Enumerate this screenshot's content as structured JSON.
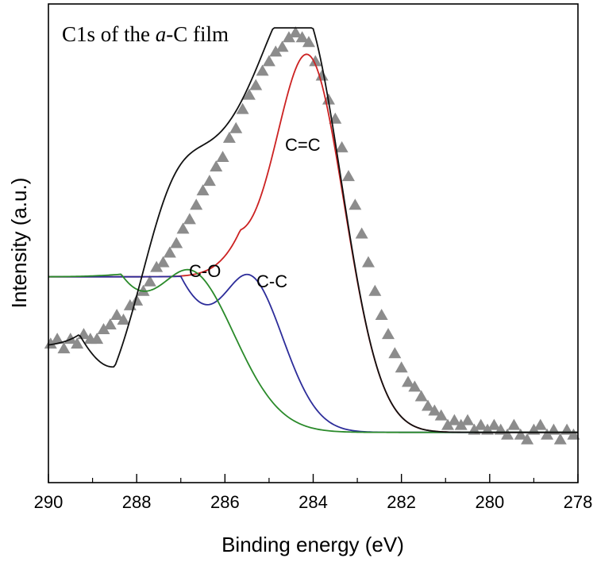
{
  "chart_data": {
    "type": "line",
    "title_parts": {
      "prefix": "C1s of the ",
      "italic": "a",
      "suffix": "-C film"
    },
    "xlabel": "Binding energy (eV)",
    "ylabel": "Intensity (a.u.)",
    "xlim": [
      290,
      278
    ],
    "x_reversed": true,
    "ylim": [
      0,
      1.0
    ],
    "y_ticks_shown": false,
    "grid": false,
    "x_ticks": [
      "290",
      "288",
      "286",
      "284",
      "282",
      "280",
      "278"
    ],
    "x_tick_values": [
      290,
      288,
      286,
      284,
      282,
      280,
      278
    ],
    "baseline": 0.105,
    "components": [
      {
        "name": "C=C",
        "color": "#cc2222",
        "center": 284.15,
        "height": 0.79,
        "sigma": 0.85
      },
      {
        "name": "C-C",
        "color": "#2d2d9a",
        "center": 285.5,
        "height": 0.33,
        "sigma": 0.8
      },
      {
        "name": "C-O",
        "color": "#2a8a2a",
        "center": 286.85,
        "height": 0.34,
        "sigma": 1.05
      }
    ],
    "envelope": {
      "color": "#111111",
      "shoulder": {
        "center": 287.2,
        "height": 0.17,
        "sigma": 0.75
      },
      "shelf": {
        "center": 290.2,
        "height": 0.325,
        "sigma": 1.2
      }
    },
    "data_points": {
      "marker": "triangle",
      "color": "#8c8c8c",
      "x": [
        289.95,
        289.8,
        289.65,
        289.5,
        289.35,
        289.2,
        289.05,
        288.9,
        288.75,
        288.6,
        288.45,
        288.3,
        288.15,
        288.0,
        287.85,
        287.7,
        287.55,
        287.4,
        287.25,
        287.1,
        286.95,
        286.8,
        286.65,
        286.5,
        286.35,
        286.2,
        286.05,
        285.9,
        285.75,
        285.6,
        285.45,
        285.3,
        285.15,
        285.0,
        284.85,
        284.7,
        284.55,
        284.4,
        284.25,
        284.1,
        283.95,
        283.8,
        283.65,
        283.5,
        283.35,
        283.2,
        283.05,
        282.9,
        282.75,
        282.6,
        282.45,
        282.3,
        282.15,
        282.0,
        281.85,
        281.7,
        281.55,
        281.4,
        281.25,
        281.1,
        280.95,
        280.8,
        280.65,
        280.5,
        280.35,
        280.2,
        280.05,
        279.9,
        279.75,
        279.6,
        279.45,
        279.3,
        279.15,
        279.0,
        278.85,
        278.7,
        278.55,
        278.4,
        278.25,
        278.1
      ],
      "y": [
        0.29,
        0.3,
        0.28,
        0.3,
        0.29,
        0.31,
        0.3,
        0.3,
        0.32,
        0.33,
        0.35,
        0.34,
        0.37,
        0.38,
        0.4,
        0.42,
        0.45,
        0.46,
        0.48,
        0.5,
        0.53,
        0.55,
        0.58,
        0.61,
        0.63,
        0.66,
        0.68,
        0.72,
        0.74,
        0.78,
        0.81,
        0.83,
        0.86,
        0.88,
        0.9,
        0.91,
        0.93,
        0.94,
        0.93,
        0.92,
        0.88,
        0.85,
        0.8,
        0.76,
        0.7,
        0.64,
        0.58,
        0.52,
        0.46,
        0.4,
        0.35,
        0.31,
        0.27,
        0.24,
        0.21,
        0.2,
        0.18,
        0.16,
        0.15,
        0.14,
        0.12,
        0.13,
        0.12,
        0.13,
        0.11,
        0.12,
        0.11,
        0.12,
        0.11,
        0.1,
        0.12,
        0.1,
        0.09,
        0.11,
        0.12,
        0.1,
        0.11,
        0.09,
        0.11,
        0.1
      ]
    }
  }
}
